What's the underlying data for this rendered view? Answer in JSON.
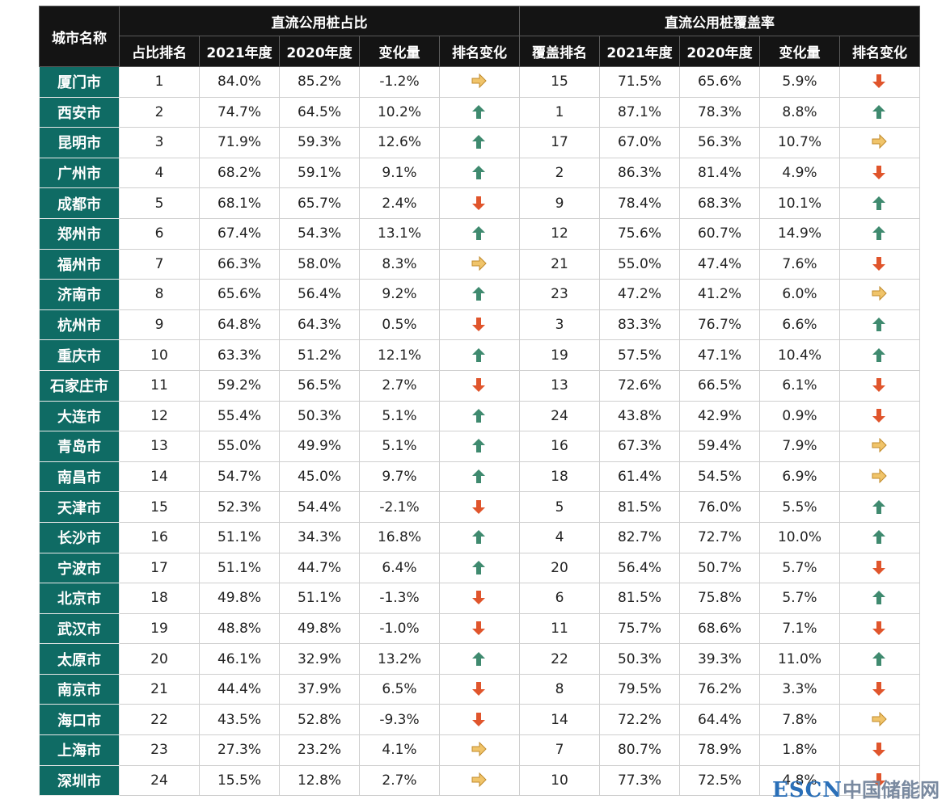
{
  "header": {
    "city_label": "城市名称",
    "group1": "直流公用桩占比",
    "group2": "直流公用桩覆盖率",
    "columns1": [
      "占比排名",
      "2021年度",
      "2020年度",
      "变化量",
      "排名变化"
    ],
    "columns2": [
      "覆盖排名",
      "2021年度",
      "2020年度",
      "变化量",
      "排名变化"
    ]
  },
  "rows": [
    [
      "厦门市",
      1,
      "84.0%",
      "85.2%",
      "-1.2%",
      "flat",
      15,
      "71.5%",
      "65.6%",
      "5.9%",
      "down"
    ],
    [
      "西安市",
      2,
      "74.7%",
      "64.5%",
      "10.2%",
      "up",
      1,
      "87.1%",
      "78.3%",
      "8.8%",
      "up"
    ],
    [
      "昆明市",
      3,
      "71.9%",
      "59.3%",
      "12.6%",
      "up",
      17,
      "67.0%",
      "56.3%",
      "10.7%",
      "flat"
    ],
    [
      "广州市",
      4,
      "68.2%",
      "59.1%",
      "9.1%",
      "up",
      2,
      "86.3%",
      "81.4%",
      "4.9%",
      "down"
    ],
    [
      "成都市",
      5,
      "68.1%",
      "65.7%",
      "2.4%",
      "down",
      9,
      "78.4%",
      "68.3%",
      "10.1%",
      "up"
    ],
    [
      "郑州市",
      6,
      "67.4%",
      "54.3%",
      "13.1%",
      "up",
      12,
      "75.6%",
      "60.7%",
      "14.9%",
      "up"
    ],
    [
      "福州市",
      7,
      "66.3%",
      "58.0%",
      "8.3%",
      "flat",
      21,
      "55.0%",
      "47.4%",
      "7.6%",
      "down"
    ],
    [
      "济南市",
      8,
      "65.6%",
      "56.4%",
      "9.2%",
      "up",
      23,
      "47.2%",
      "41.2%",
      "6.0%",
      "flat"
    ],
    [
      "杭州市",
      9,
      "64.8%",
      "64.3%",
      "0.5%",
      "down",
      3,
      "83.3%",
      "76.7%",
      "6.6%",
      "up"
    ],
    [
      "重庆市",
      10,
      "63.3%",
      "51.2%",
      "12.1%",
      "up",
      19,
      "57.5%",
      "47.1%",
      "10.4%",
      "up"
    ],
    [
      "石家庄市",
      11,
      "59.2%",
      "56.5%",
      "2.7%",
      "down",
      13,
      "72.6%",
      "66.5%",
      "6.1%",
      "down"
    ],
    [
      "大连市",
      12,
      "55.4%",
      "50.3%",
      "5.1%",
      "up",
      24,
      "43.8%",
      "42.9%",
      "0.9%",
      "down"
    ],
    [
      "青岛市",
      13,
      "55.0%",
      "49.9%",
      "5.1%",
      "up",
      16,
      "67.3%",
      "59.4%",
      "7.9%",
      "flat"
    ],
    [
      "南昌市",
      14,
      "54.7%",
      "45.0%",
      "9.7%",
      "up",
      18,
      "61.4%",
      "54.5%",
      "6.9%",
      "flat"
    ],
    [
      "天津市",
      15,
      "52.3%",
      "54.4%",
      "-2.1%",
      "down",
      5,
      "81.5%",
      "76.0%",
      "5.5%",
      "up"
    ],
    [
      "长沙市",
      16,
      "51.1%",
      "34.3%",
      "16.8%",
      "up",
      4,
      "82.7%",
      "72.7%",
      "10.0%",
      "up"
    ],
    [
      "宁波市",
      17,
      "51.1%",
      "44.7%",
      "6.4%",
      "up",
      20,
      "56.4%",
      "50.7%",
      "5.7%",
      "down"
    ],
    [
      "北京市",
      18,
      "49.8%",
      "51.1%",
      "-1.3%",
      "down",
      6,
      "81.5%",
      "75.8%",
      "5.7%",
      "up"
    ],
    [
      "武汉市",
      19,
      "48.8%",
      "49.8%",
      "-1.0%",
      "down",
      11,
      "75.7%",
      "68.6%",
      "7.1%",
      "down"
    ],
    [
      "太原市",
      20,
      "46.1%",
      "32.9%",
      "13.2%",
      "up",
      22,
      "50.3%",
      "39.3%",
      "11.0%",
      "up"
    ],
    [
      "南京市",
      21,
      "44.4%",
      "37.9%",
      "6.5%",
      "down",
      8,
      "79.5%",
      "76.2%",
      "3.3%",
      "down"
    ],
    [
      "海口市",
      22,
      "43.5%",
      "52.8%",
      "-9.3%",
      "down",
      14,
      "72.2%",
      "64.4%",
      "7.8%",
      "flat"
    ],
    [
      "上海市",
      23,
      "27.3%",
      "23.2%",
      "4.1%",
      "flat",
      7,
      "80.7%",
      "78.9%",
      "1.8%",
      "down"
    ],
    [
      "深圳市",
      24,
      "15.5%",
      "12.8%",
      "2.7%",
      "flat",
      10,
      "77.3%",
      "72.5%",
      "4.8%",
      "down"
    ]
  ],
  "watermark": {
    "brand": "ESCN",
    "site": "中国储能网"
  }
}
